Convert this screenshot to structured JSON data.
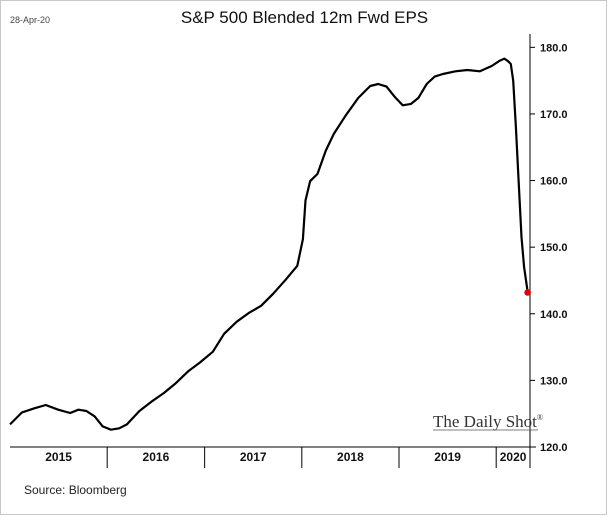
{
  "header": {
    "date_stamp": "28-Apr-20",
    "title": "S&P 500 Blended 12m Fwd EPS"
  },
  "footer": {
    "source": "Source: Bloomberg"
  },
  "watermark": "The Daily Shot®",
  "colors": {
    "line": "#000000",
    "endpoint": "#e00000",
    "axis": "#000000"
  },
  "chart_data": {
    "type": "line",
    "title": "S&P 500 Blended 12m Fwd EPS",
    "xlabel": "",
    "ylabel": "",
    "ylim": [
      120,
      182
    ],
    "xlim": [
      "2015-01-01",
      "2020-05-07"
    ],
    "y_ticks": [
      "180.0",
      "170.0",
      "160.0",
      "150.0",
      "140.0",
      "130.0",
      "120.0"
    ],
    "y_tick_values": [
      180,
      170,
      160,
      150,
      140,
      130,
      120
    ],
    "y_axis_side": "right",
    "grid": false,
    "x_year_labels": [
      {
        "label": "2015",
        "start": "2015-01-01",
        "end": "2016-01-01"
      },
      {
        "label": "2016",
        "start": "2016-01-01",
        "end": "2017-01-01"
      },
      {
        "label": "2017",
        "start": "2017-01-01",
        "end": "2018-01-01"
      },
      {
        "label": "2018",
        "start": "2018-01-01",
        "end": "2019-01-01"
      },
      {
        "label": "2019",
        "start": "2019-01-01",
        "end": "2020-01-01"
      },
      {
        "label": "2020",
        "start": "2020-01-01",
        "end": "2020-05-07"
      }
    ],
    "series": [
      {
        "x": [
          "2015-01-01",
          "2015-02-15",
          "2015-04-01",
          "2015-05-15",
          "2015-07-01",
          "2015-08-15",
          "2015-09-15",
          "2015-10-15",
          "2015-11-15",
          "2015-12-15",
          "2016-01-15",
          "2016-02-15",
          "2016-03-15",
          "2016-05-01",
          "2016-06-15",
          "2016-08-01",
          "2016-09-15",
          "2016-11-01",
          "2016-12-15",
          "2017-02-01",
          "2017-03-15",
          "2017-05-01",
          "2017-06-15",
          "2017-08-01",
          "2017-09-15",
          "2017-11-01",
          "2017-12-15",
          "2018-01-05",
          "2018-01-15",
          "2018-02-01",
          "2018-03-01",
          "2018-04-01",
          "2018-05-01",
          "2018-06-15",
          "2018-08-01",
          "2018-09-15",
          "2018-10-15",
          "2018-11-15",
          "2018-12-15",
          "2019-01-15",
          "2019-02-15",
          "2019-03-15",
          "2019-04-15",
          "2019-05-15",
          "2019-06-15",
          "2019-08-01",
          "2019-09-15",
          "2019-11-01",
          "2019-12-15",
          "2020-01-15",
          "2020-02-01",
          "2020-02-15",
          "2020-02-25",
          "2020-03-05",
          "2020-03-15",
          "2020-03-25",
          "2020-04-05",
          "2020-04-15",
          "2020-04-25",
          "2020-04-28"
        ],
        "values": [
          123.4,
          125.2,
          125.8,
          126.3,
          125.6,
          125.1,
          125.6,
          125.4,
          124.6,
          123.1,
          122.6,
          122.8,
          123.4,
          125.4,
          126.8,
          128.1,
          129.6,
          131.4,
          132.7,
          134.3,
          137.0,
          138.8,
          140.1,
          141.2,
          143.0,
          145.1,
          147.2,
          151.2,
          157.0,
          159.9,
          161.0,
          164.5,
          167.0,
          169.8,
          172.4,
          174.2,
          174.5,
          174.1,
          172.6,
          171.3,
          171.5,
          172.4,
          174.5,
          175.6,
          176.0,
          176.4,
          176.6,
          176.4,
          177.2,
          178.0,
          178.3,
          177.9,
          177.5,
          175.0,
          168.0,
          160.0,
          151.5,
          147.0,
          144.2,
          143.2
        ]
      }
    ],
    "endpoint": {
      "x": "2020-04-28",
      "y": 143.2
    }
  }
}
